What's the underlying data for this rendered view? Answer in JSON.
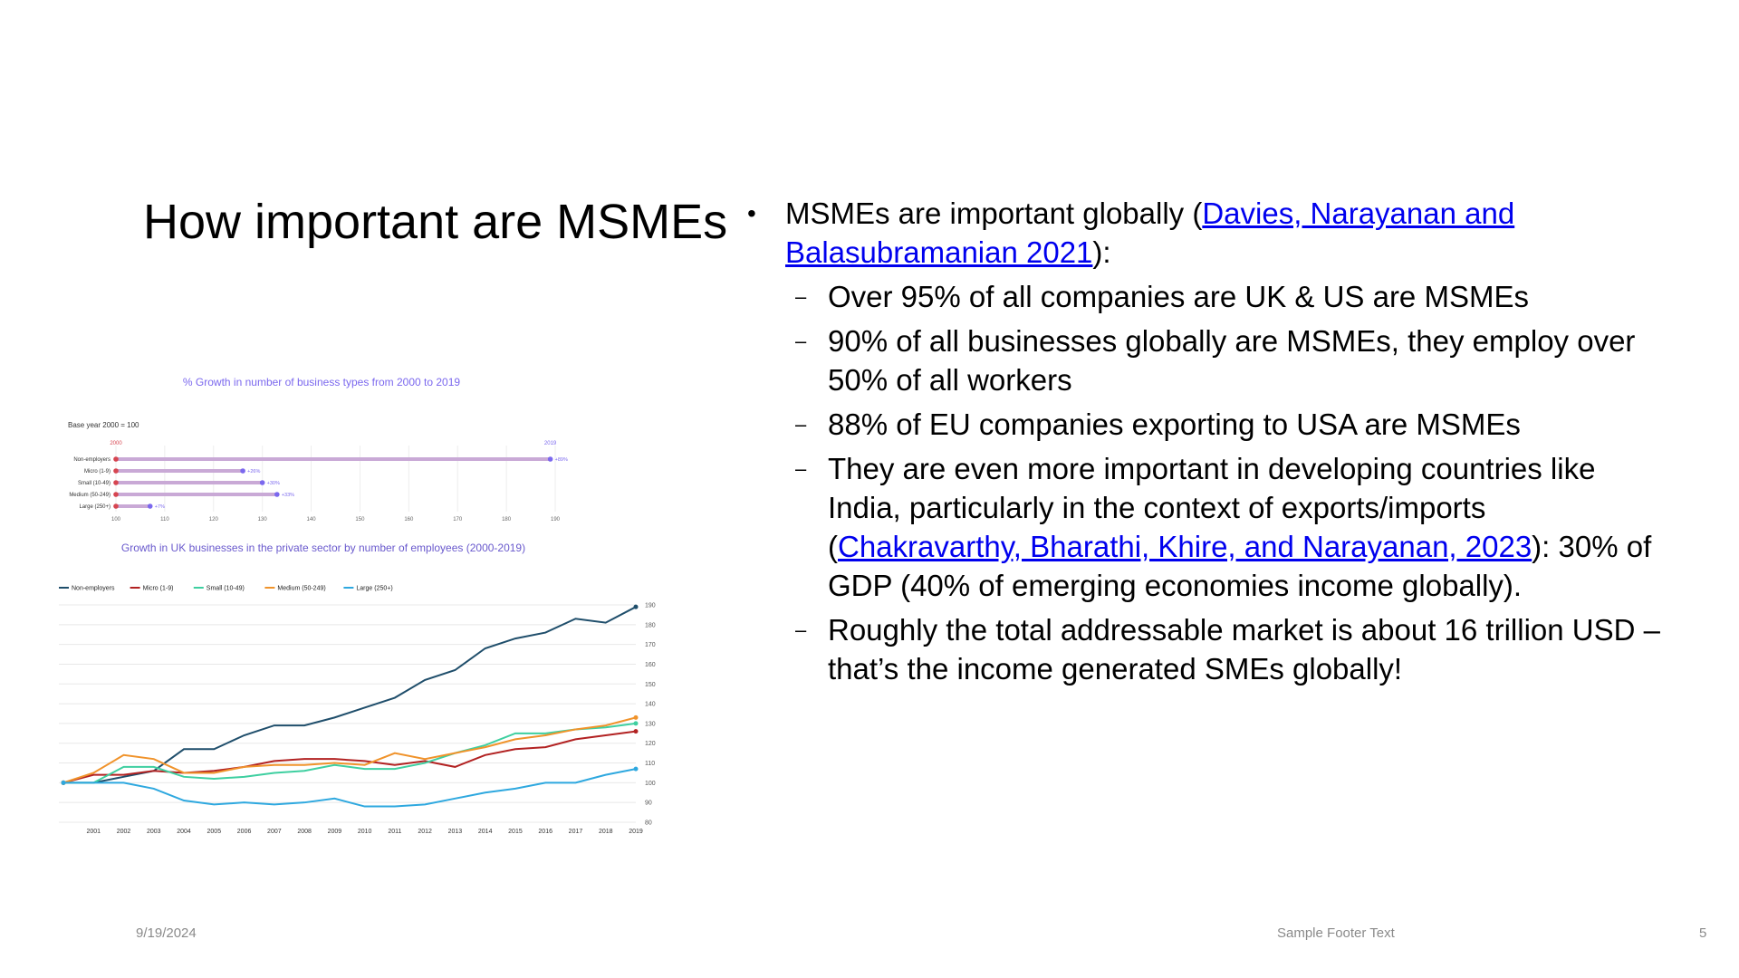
{
  "slide": {
    "title": "How important are MSMEs",
    "footer_date": "9/19/2024",
    "footer_text": "Sample Footer Text",
    "page_number": "5"
  },
  "content": {
    "bullet_symbol": "•",
    "dash_symbol": "–",
    "intro_text": "MSMEs are important globally (",
    "intro_link": "Davies, Narayanan and Balasubramanian 2021",
    "intro_end": "):",
    "items": [
      {
        "text": "Over 95% of all companies are UK & US are MSMEs"
      },
      {
        "text": "90% of all businesses globally are MSMEs, they employ over 50% of all workers"
      },
      {
        "text": "88% of EU companies exporting to USA are MSMEs"
      },
      {
        "pre": "They are even more important in developing countries like India, particularly in the context of exports/imports (",
        "link": "Chakravarthy, Bharathi, Khire, and Narayanan, 2023",
        "post": "): 30% of GDP (40% of emerging economies income globally)."
      },
      {
        "text": "Roughly the total addressable market is about 16 trillion USD – that’s the income generated SMEs globally!"
      }
    ]
  },
  "chart_data": [
    {
      "type": "bar",
      "title": "% Growth in number of business types from 2000 to 2019",
      "note": "Base year 2000 = 100",
      "start_label": "2000",
      "end_label": "2019",
      "categories": [
        "Non-employers",
        "Micro (1-9)",
        "Small (10-49)",
        "Medium (50-249)",
        "Large (250+)"
      ],
      "values": [
        189,
        126,
        130,
        133,
        107
      ],
      "data_labels": [
        "+89%",
        "+26%",
        "+30%",
        "+33%",
        "+7%"
      ],
      "xlim": [
        100,
        190
      ],
      "xticks": [
        "100",
        "110",
        "120",
        "130",
        "140",
        "150",
        "160",
        "170",
        "180",
        "190"
      ],
      "colors": {
        "start": "#d64550",
        "end": "#7b68ee",
        "bar": "#c9a9d6"
      }
    },
    {
      "type": "line",
      "title": "Growth in UK businesses in the private sector by number of employees (2000-2019)",
      "x": [
        2000,
        2001,
        2002,
        2003,
        2004,
        2005,
        2006,
        2007,
        2008,
        2009,
        2010,
        2011,
        2012,
        2013,
        2014,
        2015,
        2016,
        2017,
        2018,
        2019
      ],
      "xticks": [
        "2001",
        "2002",
        "2003",
        "2004",
        "2005",
        "2006",
        "2007",
        "2008",
        "2009",
        "2010",
        "2011",
        "2012",
        "2013",
        "2014",
        "2015",
        "2016",
        "2017",
        "2018",
        "2019"
      ],
      "ylim": [
        80,
        190
      ],
      "yticks": [
        "80",
        "90",
        "100",
        "110",
        "120",
        "130",
        "140",
        "150",
        "160",
        "170",
        "180",
        "190"
      ],
      "grid": true,
      "legend": "top-left",
      "series": [
        {
          "name": "Non-employers",
          "color": "#1f4e6b",
          "values": [
            100,
            100,
            103,
            106,
            117,
            117,
            124,
            129,
            129,
            133,
            138,
            143,
            152,
            157,
            168,
            173,
            176,
            183,
            181,
            189
          ]
        },
        {
          "name": "Micro (1-9)",
          "color": "#b22222",
          "values": [
            100,
            104,
            104,
            106,
            105,
            106,
            108,
            111,
            112,
            112,
            111,
            109,
            111,
            108,
            114,
            117,
            118,
            122,
            124,
            126
          ]
        },
        {
          "name": "Small (10-49)",
          "color": "#3ecfa0",
          "values": [
            100,
            100,
            108,
            108,
            103,
            102,
            103,
            105,
            106,
            109,
            107,
            107,
            110,
            115,
            119,
            125,
            125,
            127,
            128,
            130
          ]
        },
        {
          "name": "Medium (50-249)",
          "color": "#f0932b",
          "values": [
            100,
            105,
            114,
            112,
            105,
            105,
            108,
            109,
            109,
            110,
            109,
            115,
            112,
            115,
            118,
            122,
            124,
            127,
            129,
            133
          ]
        },
        {
          "name": "Large (250+)",
          "color": "#2ea8df",
          "values": [
            100,
            100,
            100,
            97,
            91,
            89,
            90,
            89,
            90,
            92,
            88,
            88,
            89,
            92,
            95,
            97,
            100,
            100,
            104,
            107
          ]
        }
      ]
    }
  ]
}
